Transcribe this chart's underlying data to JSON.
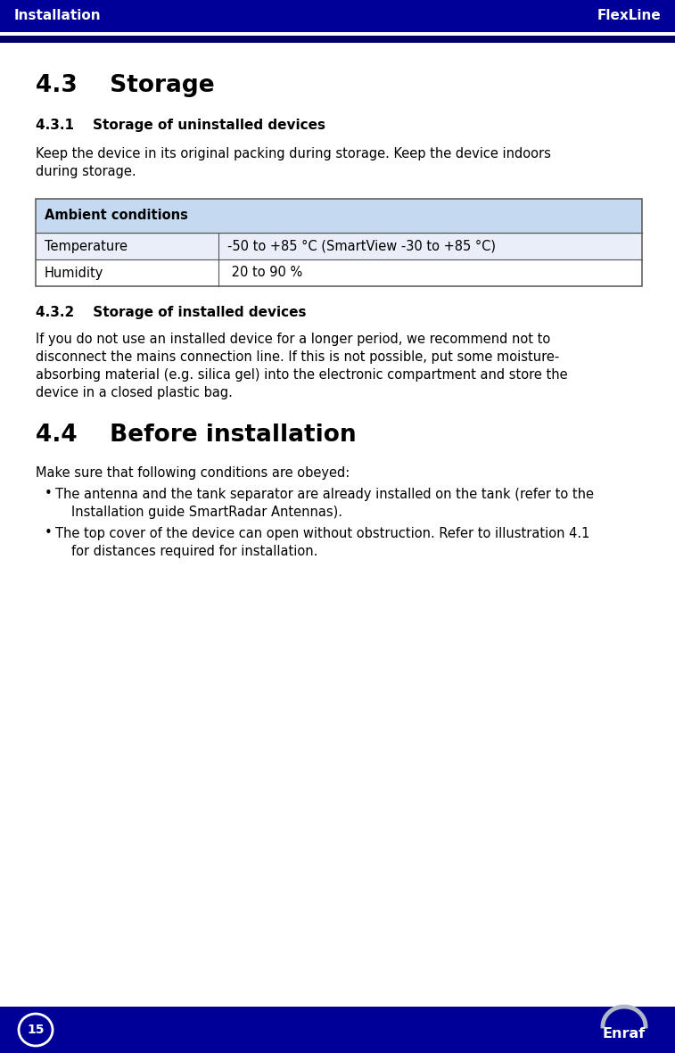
{
  "header_bg": "#000099",
  "header_text_color": "#FFFFFF",
  "header_left": "Installation",
  "header_right": "FlexLine",
  "footer_bg": "#000099",
  "footer_text_color": "#FFFFFF",
  "page_number": "15",
  "footer_logo": "Enraf",
  "body_bg": "#FFFFFF",
  "body_text_color": "#000000",
  "section_43_title": "4.3    Storage",
  "section_431_title": "4.3.1    Storage of uninstalled devices",
  "section_431_text_lines": [
    "Keep the device in its original packing during storage. Keep the device indoors",
    "during storage."
  ],
  "table_header": "Ambient conditions",
  "table_header_bg": "#C5D9F1",
  "table_border_color": "#555555",
  "table_rows": [
    [
      "Temperature",
      "-50 to +85 °C (SmartView -30 to +85 °C)"
    ],
    [
      "Humidity",
      " 20 to 90 %"
    ]
  ],
  "section_432_title": "4.3.2    Storage of installed devices",
  "section_432_text_lines": [
    "If you do not use an installed device for a longer period, we recommend not to",
    "disconnect the mains connection line. If this is not possible, put some moisture-",
    "absorbing material (e.g. silica gel) into the electronic compartment and store the",
    "device in a closed plastic bag."
  ],
  "section_44_title": "4.4    Before installation",
  "section_44_intro": "Make sure that following conditions are obeyed:",
  "section_44_bullets": [
    [
      "The antenna and the tank separator are already installed on the tank (refer to the",
      "Installation guide SmartRadar Antennas)."
    ],
    [
      "The top cover of the device can open without obstruction. Refer to illustration 4.1",
      "for distances required for installation."
    ]
  ],
  "separator_color": "#AAAAAA",
  "dark_bar_color": "#000066",
  "body_font_size": 10.5,
  "header_font_size": 11,
  "sub_section_font_size": 11,
  "large_title_font_size": 19
}
